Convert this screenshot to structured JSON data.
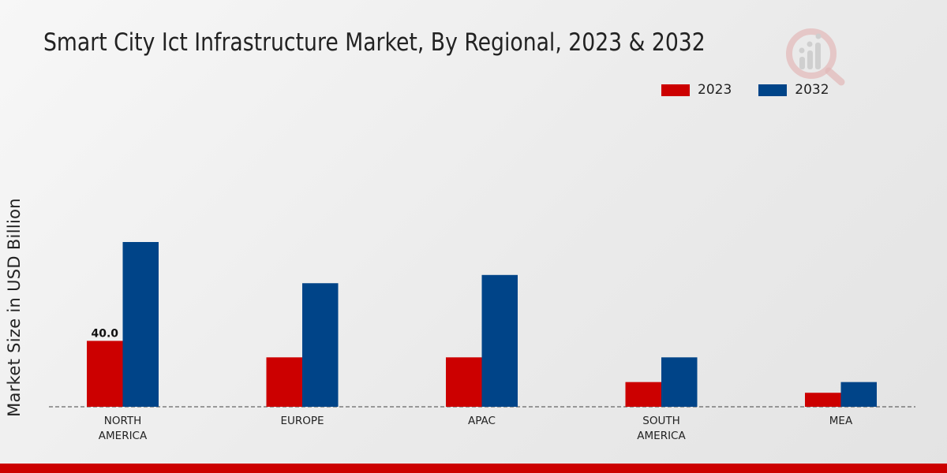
{
  "chart_data": {
    "type": "bar",
    "title": "Smart City Ict Infrastructure Market, By Regional, 2023 & 2032",
    "ylabel": "Market Size in USD Billion",
    "xlabel": "",
    "categories": [
      "NORTH\nAMERICA",
      "EUROPE",
      "APAC",
      "SOUTH\nAMERICA",
      "MEA"
    ],
    "series": [
      {
        "name": "2023",
        "color": "#cc0000",
        "values": [
          40.0,
          30.0,
          30.0,
          15.0,
          8.5
        ]
      },
      {
        "name": "2032",
        "color": "#004488",
        "values": [
          100.0,
          75.0,
          80.0,
          30.0,
          15.0
        ]
      }
    ],
    "data_labels": [
      {
        "series": 0,
        "index": 0,
        "text": "40.0"
      }
    ],
    "ylim": [
      0,
      100
    ],
    "grid": false,
    "legend_position": "top-right"
  }
}
